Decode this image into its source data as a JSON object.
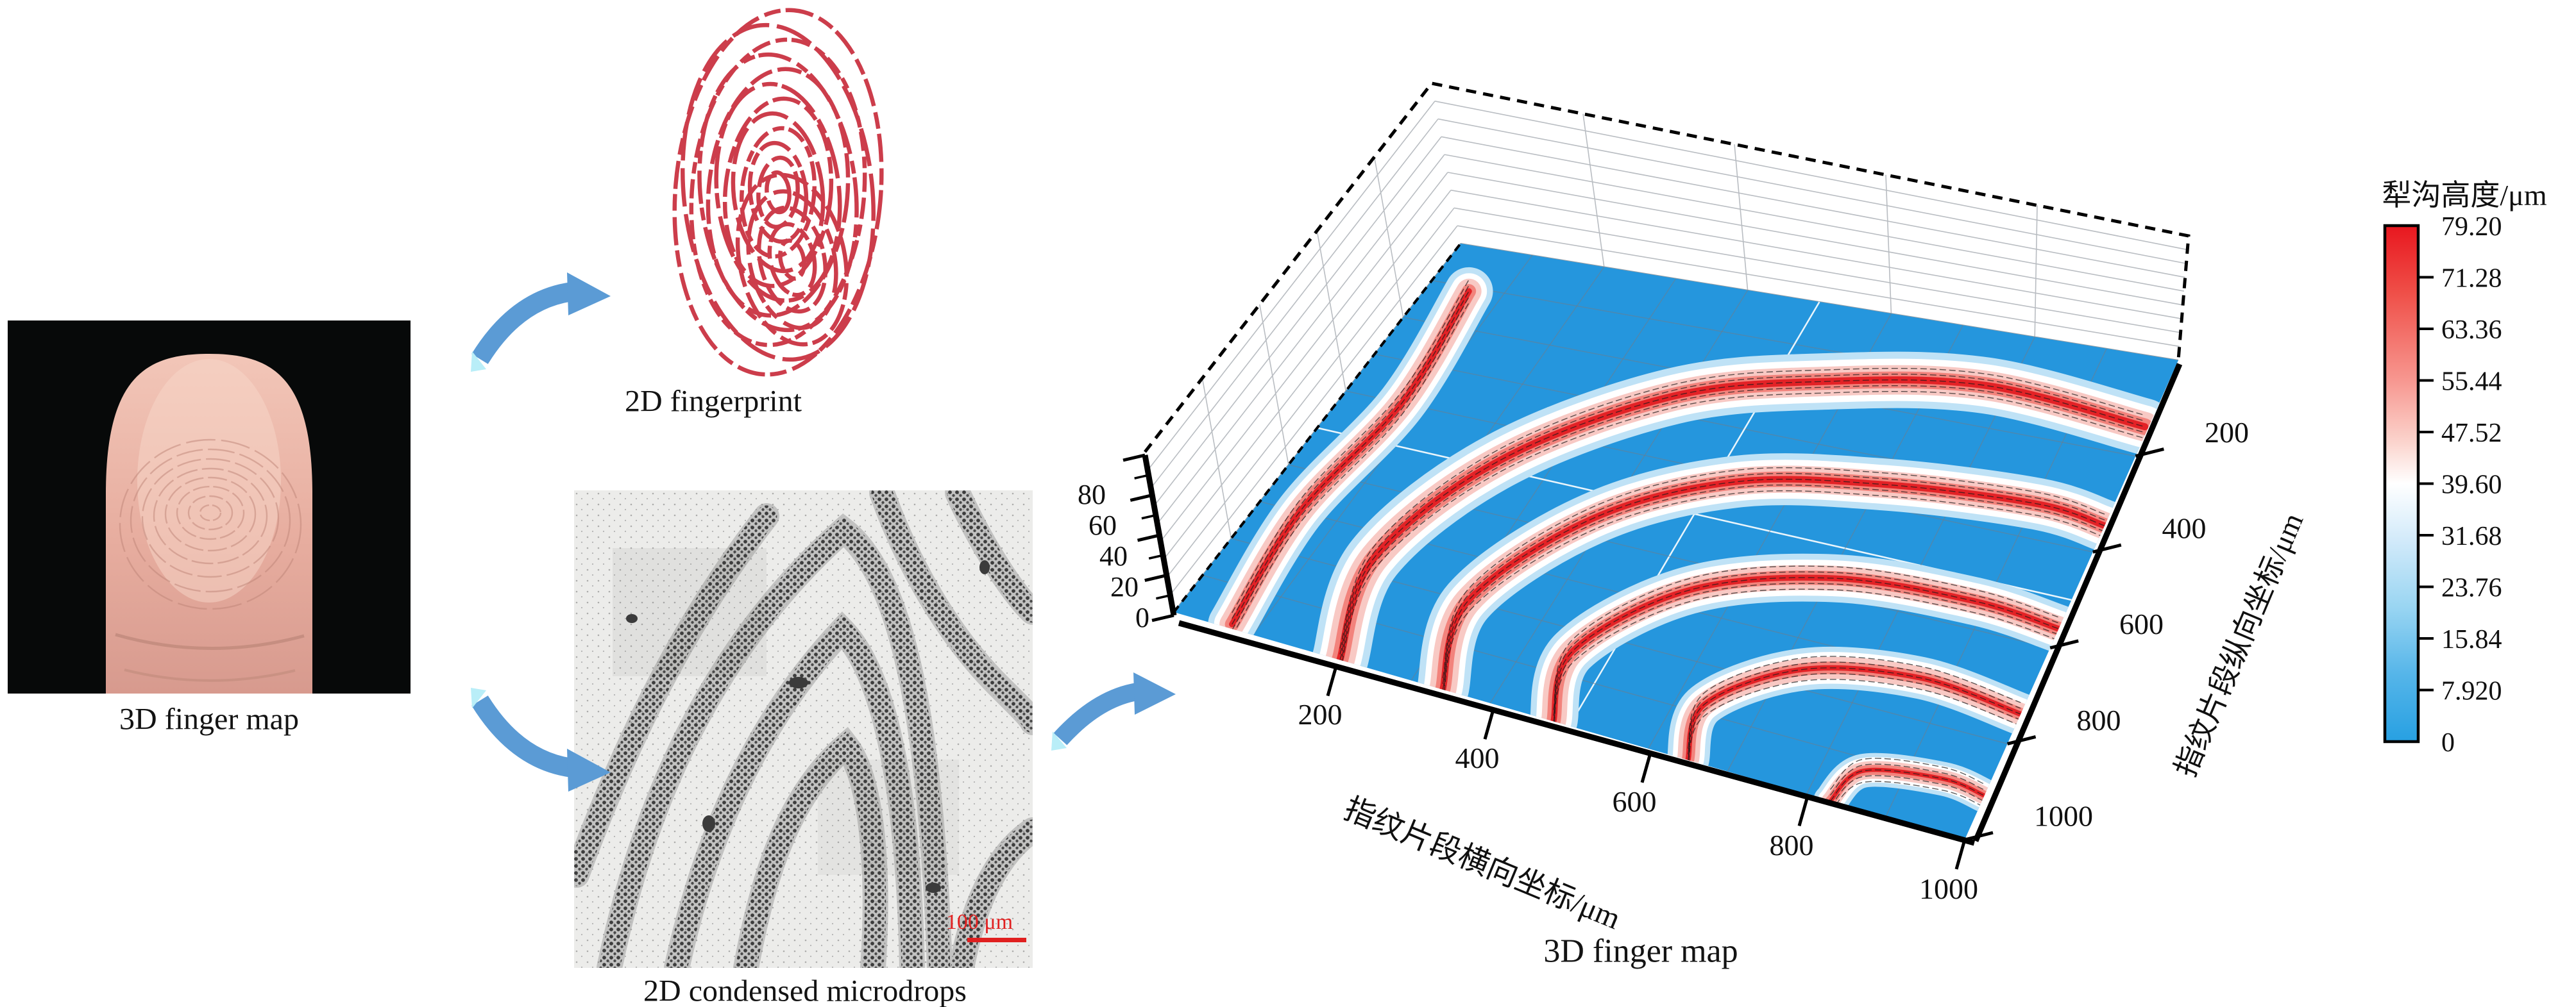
{
  "panels": {
    "finger_photo": {
      "caption": "3D finger map"
    },
    "fingerprint": {
      "caption": "2D fingerprint"
    },
    "microdrops": {
      "caption": "2D condensed microdrops",
      "scale_bar": "100 μm"
    },
    "surface_plot": {
      "caption": "3D finger map"
    }
  },
  "colors": {
    "arrow": "#5b9bd5",
    "arrow_accent": "#b9eef8",
    "floor_blue": "#2596dd",
    "ridge_red": "#e32226",
    "fingerprint_red": "#c92f3e",
    "scalebar_red": "#e02020"
  },
  "chart_data": {
    "type": "surface3d",
    "title": "3D finger map",
    "x_axis": {
      "label": "指纹片段横向坐标/μm",
      "range": [
        0,
        1000
      ],
      "ticks": [
        "200",
        "400",
        "600",
        "800",
        "1000"
      ]
    },
    "y_axis": {
      "label": "指纹片段纵向坐标/μm",
      "range": [
        0,
        1000
      ],
      "ticks": [
        "200",
        "400",
        "600",
        "800",
        "1000"
      ]
    },
    "z_axis": {
      "range": [
        0,
        88
      ],
      "ticks": [
        "0",
        "20",
        "40",
        "60",
        "80"
      ]
    },
    "grid": "on",
    "colorbar": {
      "title": "犁沟高度/μm",
      "tick_labels": [
        "79.20",
        "71.28",
        "63.36",
        "55.44",
        "47.52",
        "39.60",
        "31.68",
        "23.76",
        "15.84",
        "7.920",
        "0"
      ],
      "min": 0,
      "max": 79.2,
      "stops": [
        [
          "0",
          "#e8171f"
        ],
        [
          "0.13",
          "#ef4f48"
        ],
        [
          "0.30",
          "#f79790"
        ],
        [
          "0.42",
          "#fbd4cd"
        ],
        [
          "0.50",
          "#ffffff"
        ],
        [
          "0.61",
          "#d2eafa"
        ],
        [
          "0.74",
          "#99d5f2"
        ],
        [
          "0.87",
          "#55b5e9"
        ],
        [
          "1",
          "#27a0e2"
        ]
      ]
    },
    "surface": {
      "description": "fingerprint furrow height field: blue floor z=0, red ridge crests up to 79.2 um",
      "ridge_layer_colors": [
        "#bfe2f6",
        "#ffffff",
        "#f8c9c4",
        "#f2837c",
        "#e32226"
      ],
      "ridges": [
        {
          "pts": [
            [
              70,
              990
            ],
            [
              52,
              700
            ],
            [
              75,
              400
            ],
            [
              55,
              110
            ]
          ],
          "w": 0.85
        },
        {
          "pts": [
            [
              210,
              1000
            ],
            [
              170,
              760
            ],
            [
              235,
              480
            ],
            [
              390,
              260
            ],
            [
              570,
              165
            ],
            [
              770,
              115
            ],
            [
              995,
              140
            ]
          ],
          "w": 1.0
        },
        {
          "pts": [
            [
              340,
              1000
            ],
            [
              305,
              800
            ],
            [
              385,
              560
            ],
            [
              525,
              415
            ],
            [
              705,
              355
            ],
            [
              905,
              330
            ],
            [
              1000,
              345
            ]
          ],
          "w": 0.92
        },
        {
          "pts": [
            [
              480,
              1000
            ],
            [
              455,
              845
            ],
            [
              545,
              660
            ],
            [
              705,
              565
            ],
            [
              885,
              545
            ],
            [
              1000,
              560
            ]
          ],
          "w": 0.85
        },
        {
          "pts": [
            [
              650,
              1000
            ],
            [
              635,
              880
            ],
            [
              725,
              760
            ],
            [
              865,
              718
            ],
            [
              1000,
              738
            ]
          ],
          "w": 0.75
        },
        {
          "pts": [
            [
              830,
              1000
            ],
            [
              850,
              925
            ],
            [
              945,
              898
            ],
            [
              1000,
              908
            ]
          ],
          "w": 0.6
        }
      ]
    }
  }
}
